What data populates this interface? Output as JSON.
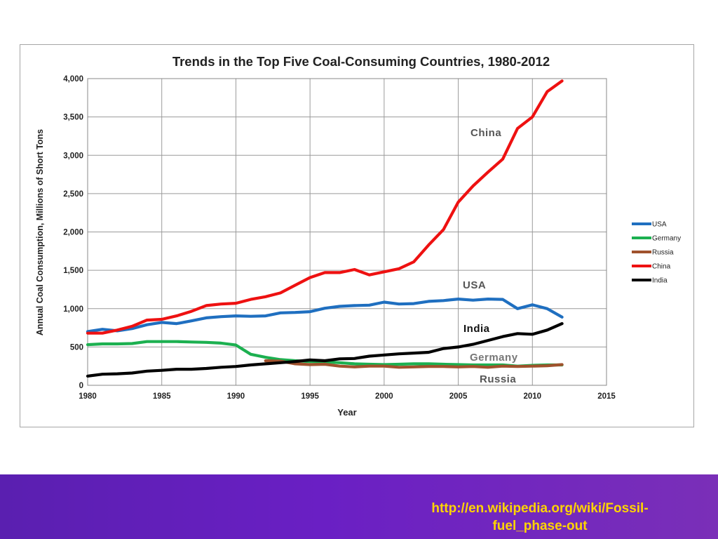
{
  "chart_data": {
    "type": "line",
    "title": "Trends in the Top Five Coal-Consuming Countries, 1980-2012",
    "xlabel": "Year",
    "ylabel": "Annual Coal Consumption, Millions of Short Tons",
    "xlim": [
      1980,
      2015
    ],
    "ylim": [
      0,
      4000
    ],
    "x_ticks": [
      1980,
      1985,
      1990,
      1995,
      2000,
      2005,
      2010,
      2015
    ],
    "y_ticks": [
      0,
      500,
      1000,
      1500,
      2000,
      2500,
      3000,
      3500,
      4000
    ],
    "y_tick_labels": [
      "0",
      "500",
      "1,000",
      "1,500",
      "2,000",
      "2,500",
      "3,000",
      "3,500",
      "4,000"
    ],
    "grid": true,
    "legend_position": "right",
    "series": [
      {
        "name": "USA",
        "color": "#1f6fc0",
        "x": [
          1980,
          1981,
          1982,
          1983,
          1984,
          1985,
          1986,
          1987,
          1988,
          1989,
          1990,
          1991,
          1992,
          1993,
          1994,
          1995,
          1996,
          1997,
          1998,
          1999,
          2000,
          2001,
          2002,
          2003,
          2004,
          2005,
          2006,
          2007,
          2008,
          2009,
          2010,
          2011,
          2012
        ],
        "values": [
          700,
          730,
          710,
          740,
          790,
          820,
          805,
          840,
          880,
          895,
          905,
          900,
          905,
          945,
          950,
          960,
          1005,
          1030,
          1040,
          1045,
          1085,
          1060,
          1065,
          1095,
          1105,
          1125,
          1110,
          1125,
          1120,
          1000,
          1050,
          1000,
          890
        ]
      },
      {
        "name": "Germany",
        "color": "#1cb050",
        "x": [
          1980,
          1981,
          1982,
          1983,
          1984,
          1985,
          1986,
          1987,
          1988,
          1989,
          1990,
          1991,
          1992,
          1993,
          1994,
          1995,
          1996,
          1997,
          1998,
          1999,
          2000,
          2001,
          2002,
          2003,
          2004,
          2005,
          2006,
          2007,
          2008,
          2009,
          2010,
          2011,
          2012
        ],
        "values": [
          530,
          540,
          540,
          545,
          570,
          570,
          570,
          565,
          560,
          550,
          525,
          405,
          365,
          335,
          320,
          310,
          305,
          295,
          280,
          275,
          270,
          275,
          280,
          280,
          275,
          270,
          265,
          265,
          265,
          250,
          260,
          265,
          265
        ]
      },
      {
        "name": "Russia",
        "color": "#a0522d",
        "x": [
          1992,
          1993,
          1994,
          1995,
          1996,
          1997,
          1998,
          1999,
          2000,
          2001,
          2002,
          2003,
          2004,
          2005,
          2006,
          2007,
          2008,
          2009,
          2010,
          2011,
          2012
        ],
        "values": [
          320,
          315,
          280,
          270,
          275,
          250,
          240,
          250,
          250,
          235,
          240,
          245,
          245,
          240,
          245,
          235,
          250,
          245,
          250,
          255,
          270
        ]
      },
      {
        "name": "China",
        "color": "#ee1111",
        "x": [
          1980,
          1981,
          1982,
          1983,
          1984,
          1985,
          1986,
          1987,
          1988,
          1989,
          1990,
          1991,
          1992,
          1993,
          1994,
          1995,
          1996,
          1997,
          1998,
          1999,
          2000,
          2001,
          2002,
          2003,
          2004,
          2005,
          2006,
          2007,
          2008,
          2009,
          2010,
          2011,
          2012
        ],
        "values": [
          680,
          680,
          720,
          770,
          850,
          860,
          905,
          965,
          1040,
          1060,
          1070,
          1120,
          1155,
          1205,
          1305,
          1405,
          1470,
          1470,
          1510,
          1440,
          1480,
          1520,
          1610,
          1830,
          2030,
          2390,
          2600,
          2780,
          2950,
          3350,
          3500,
          3830,
          3970
        ]
      },
      {
        "name": "India",
        "color": "#000000",
        "x": [
          1980,
          1981,
          1982,
          1983,
          1984,
          1985,
          1986,
          1987,
          1988,
          1989,
          1990,
          1991,
          1992,
          1993,
          1994,
          1995,
          1996,
          1997,
          1998,
          1999,
          2000,
          2001,
          2002,
          2003,
          2004,
          2005,
          2006,
          2007,
          2008,
          2009,
          2010,
          2011,
          2012
        ],
        "values": [
          120,
          145,
          150,
          160,
          185,
          195,
          210,
          210,
          220,
          235,
          245,
          265,
          280,
          295,
          310,
          330,
          320,
          345,
          350,
          380,
          395,
          410,
          420,
          430,
          480,
          500,
          535,
          585,
          635,
          675,
          665,
          720,
          805
        ]
      }
    ],
    "annotations": [
      {
        "text": "China",
        "color": "#555555"
      },
      {
        "text": "USA",
        "color": "#555555"
      },
      {
        "text": "India",
        "color": "#111111"
      },
      {
        "text": "Germany",
        "color": "#777777"
      },
      {
        "text": "Russia",
        "color": "#555555"
      }
    ]
  },
  "footer": {
    "link_line1": "http://en.wikipedia.org/wiki/Fossil-",
    "link_line2": "fuel_phase-out",
    "link_color": "#ffd400",
    "band_color": "#6a1fc4"
  }
}
